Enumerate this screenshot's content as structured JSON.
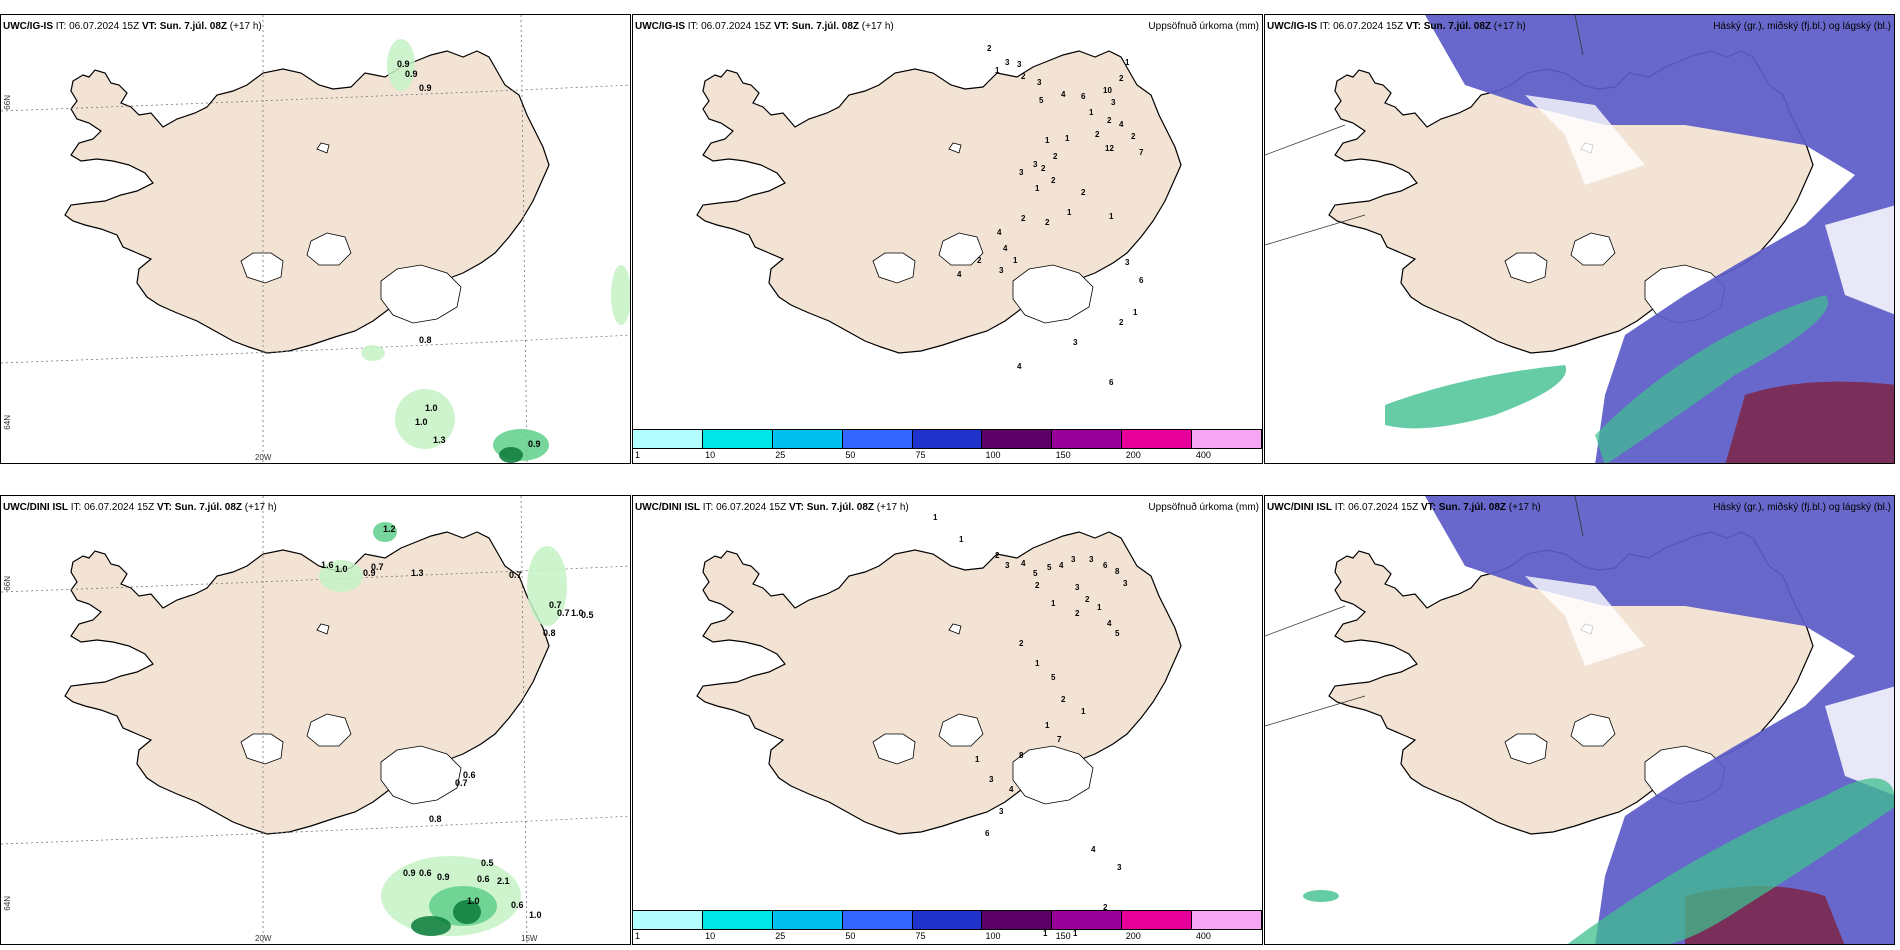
{
  "rows": [
    {
      "id": "ig",
      "panels": [
        {
          "model": "UWC/IG-IS",
          "it_label": "IT:",
          "it_value": "06.07.2024 15Z",
          "vt_label": "VT:",
          "vt_value": "Sun. 7.júl. 08Z",
          "lead": "(+17 h)",
          "title": ""
        },
        {
          "model": "UWC/IG-IS",
          "it_label": "IT:",
          "it_value": "06.07.2024 15Z",
          "vt_label": "VT:",
          "vt_value": "Sun. 7.júl. 08Z",
          "lead": "(+17 h)",
          "title": "Uppsöfnuð úrkoma (mm)"
        },
        {
          "model": "UWC/IG-IS",
          "it_label": "IT:",
          "it_value": "06.07.2024 15Z",
          "vt_label": "VT:",
          "vt_value": "Sun. 7.júl. 08Z",
          "lead": "(+17 h)",
          "title": "Háský (gr.), miðský (fj.bl.) og lágský (bl.)"
        }
      ],
      "wind_precip_values": [
        "0.9",
        "0.9",
        "0.9",
        "0.8",
        "1.0",
        "1.0",
        "1.3",
        "0.9"
      ],
      "accum_values": [
        "2",
        "3",
        "3",
        "1",
        "2",
        "3",
        "5",
        "4",
        "6",
        "10",
        "2",
        "1",
        "3",
        "1",
        "2",
        "4",
        "2",
        "7",
        "12",
        "2",
        "1",
        "1",
        "2",
        "3",
        "2",
        "2",
        "3",
        "1",
        "2",
        "4",
        "4",
        "1",
        "2",
        "4",
        "3",
        "2",
        "1",
        "2",
        "1",
        "3",
        "6",
        "2",
        "6",
        "4",
        "3",
        "1"
      ]
    },
    {
      "id": "dini",
      "panels": [
        {
          "model": "UWC/DINI ISL",
          "it_label": "IT:",
          "it_value": "06.07.2024 15Z",
          "vt_label": "VT:",
          "vt_value": "Sun. 7.júl. 08Z",
          "lead": "(+17 h)",
          "title": ""
        },
        {
          "model": "UWC/DINI ISL",
          "it_label": "IT:",
          "it_value": "06.07.2024 15Z",
          "vt_label": "VT:",
          "vt_value": "Sun. 7.júl. 08Z",
          "lead": "(+17 h)",
          "title": "Uppsöfnuð úrkoma (mm)"
        },
        {
          "model": "UWC/DINI ISL",
          "it_label": "IT:",
          "it_value": "06.07.2024 15Z",
          "vt_label": "VT:",
          "vt_value": "Sun. 7.júl. 08Z",
          "lead": "(+17 h)",
          "title": "Háský (gr.), miðský (fj.bl.) og lágský (bl.)"
        }
      ],
      "wind_precip_values": [
        "1.2",
        "1.6",
        "1.0",
        "0.7",
        "0.9",
        "1.3",
        "0.7",
        "0.7",
        "0.7",
        "1.0",
        "0.5",
        "0.8",
        "0.6",
        "0.7",
        "0.8",
        "0.9",
        "0.6",
        "0.9",
        "0.5",
        "0.6",
        "2.1",
        "1.0",
        "0.6",
        "1.0"
      ],
      "accum_values": [
        "1",
        "1",
        "2",
        "3",
        "4",
        "5",
        "5",
        "4",
        "3",
        "3",
        "6",
        "8",
        "3",
        "3",
        "2",
        "1",
        "4",
        "5",
        "2",
        "1",
        "2",
        "2",
        "1",
        "5",
        "2",
        "1",
        "1",
        "7",
        "8",
        "1",
        "3",
        "4",
        "3",
        "6",
        "4",
        "3",
        "2",
        "1",
        "1"
      ]
    }
  ],
  "axis_labels": {
    "lat66": "66N",
    "lat64": "64N",
    "lon20": "20W",
    "lon15": "15W"
  },
  "colorbar": {
    "labels": [
      "1",
      "10",
      "25",
      "50",
      "75",
      "100",
      "150",
      "200",
      "400"
    ],
    "colors": [
      "#b3ffff",
      "#00e6e6",
      "#00c0f0",
      "#3366ff",
      "#1f33cc",
      "#5c0066",
      "#990099",
      "#e60099",
      "#f5a6f5"
    ]
  },
  "colors": {
    "land": "#f2e3d4",
    "land_outline": "#000000",
    "precip_light": "#c6f2c6",
    "precip_mid": "#5fcf8a",
    "precip_dark": "#0b7a3a",
    "accum_cyan": "#b3ffff",
    "high_cloud": "#5b5bc8",
    "mid_cloud": "#7a2f5a",
    "low_cloud": "#3fbf8f",
    "lat_lon_grid": "#777777"
  },
  "icons": {
    "wind_barb": "wind-barb-icon"
  }
}
